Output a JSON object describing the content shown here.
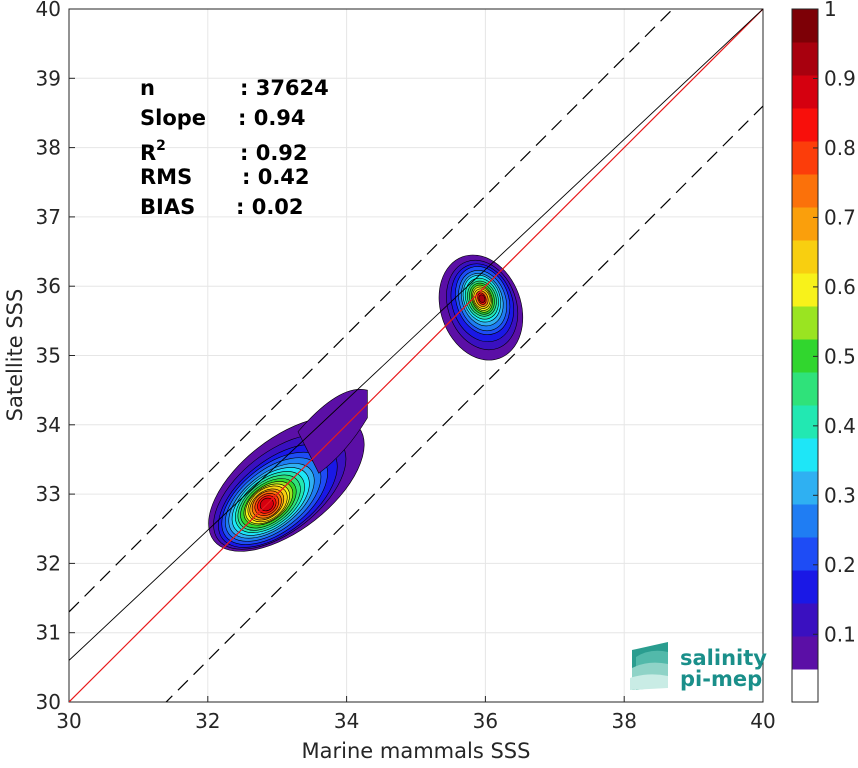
{
  "chart_data": {
    "type": "heatmap",
    "subtype": "filled-contour density scatter",
    "xlabel": "Marine mammals SSS",
    "ylabel": "Satellite SSS",
    "xlim": [
      30,
      40
    ],
    "ylim": [
      30,
      40
    ],
    "xticks": [
      30,
      32,
      34,
      36,
      38,
      40
    ],
    "yticks": [
      30,
      31,
      32,
      33,
      34,
      35,
      36,
      37,
      38,
      39,
      40
    ],
    "grid": true,
    "stats": [
      {
        "label": "n",
        "value": ": 37624"
      },
      {
        "label": "Slope",
        "value": ": 0.94"
      },
      {
        "label": "R",
        "sup": "2",
        "value": ": 0.92"
      },
      {
        "label": "RMS",
        "value": ": 0.42"
      },
      {
        "label": "BIAS",
        "value": ": 0.02"
      }
    ],
    "reference_lines": [
      {
        "name": "1:1",
        "color": "#e8191b",
        "slope": 1.0,
        "intercept": 0
      },
      {
        "name": "fit",
        "color": "#000000",
        "slope": 0.94,
        "intercept": 2.4
      },
      {
        "name": "upper bound",
        "color": "#000000",
        "dashed": true,
        "slope": 1.0,
        "intercept": 1.3
      },
      {
        "name": "lower bound",
        "color": "#000000",
        "dashed": true,
        "slope": 1.0,
        "intercept": -1.4
      }
    ],
    "clusters": [
      {
        "center": [
          32.85,
          32.85
        ],
        "peak": 1.0
      },
      {
        "center": [
          35.95,
          35.82
        ],
        "peak": 1.0
      }
    ],
    "colorbar": {
      "ticks": [
        "0.1",
        "0.2",
        "0.3",
        "0.4",
        "0.5",
        "0.6",
        "0.7",
        "0.8",
        "0.9",
        "1"
      ],
      "colors": [
        "#ffffff",
        "#5b0fa6",
        "#3a10c0",
        "#1a18e6",
        "#1e4cf5",
        "#1f7df3",
        "#2fb0f2",
        "#1ee6f7",
        "#22e8b2",
        "#2fe27a",
        "#31d62e",
        "#9ae421",
        "#f8f21a",
        "#f8cf10",
        "#fa9f0c",
        "#fb710a",
        "#fc3d0a",
        "#f80f0b",
        "#d5000f",
        "#a8000e",
        "#7d0006"
      ]
    },
    "logo": {
      "line1": "salinity",
      "line2": "pi-mep"
    }
  }
}
